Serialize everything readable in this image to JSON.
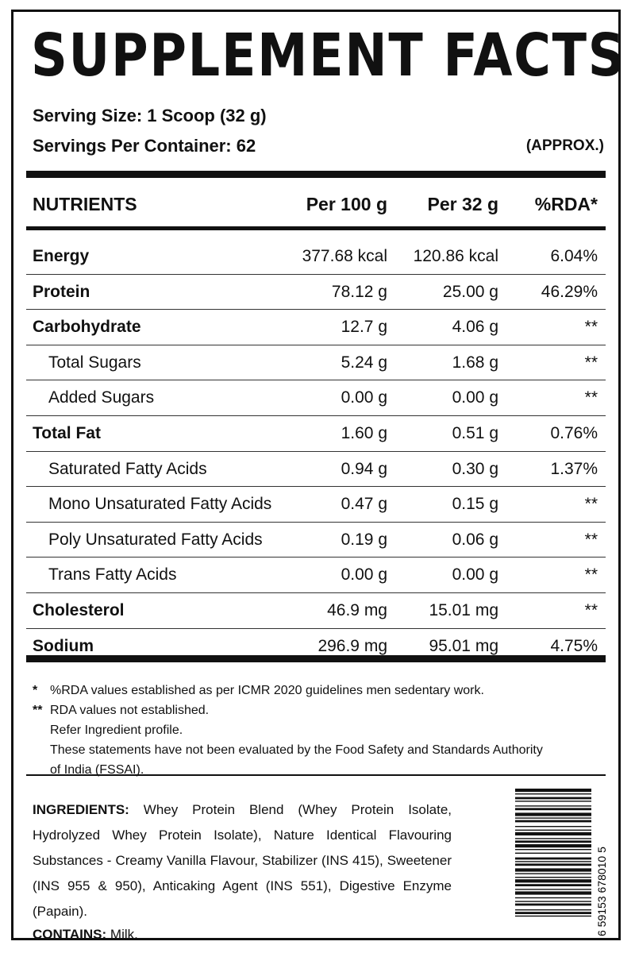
{
  "title": "SUPPLEMENT FACTS",
  "serving_size": "Serving Size: 1 Scoop (32 g)",
  "servings_per_container": "Servings Per Container: 62",
  "approx": "(APPROX.)",
  "table": {
    "headers": [
      "NUTRIENTS",
      "Per 100 g",
      "Per 32 g",
      "%RDA*"
    ],
    "rows": [
      {
        "name": "Energy",
        "per100": "377.68 kcal",
        "per32": "120.86 kcal",
        "rda": "6.04%"
      },
      {
        "name": "Protein",
        "per100": "78.12 g",
        "per32": "25.00 g",
        "rda": "46.29%"
      },
      {
        "name": "Carbohydrate",
        "per100": "12.7 g",
        "per32": "4.06 g",
        "rda": "**"
      },
      {
        "name": "Total Sugars",
        "per100": "5.24 g",
        "per32": "1.68 g",
        "rda": "**"
      },
      {
        "name": "Added Sugars",
        "per100": "0.00 g",
        "per32": "0.00 g",
        "rda": "**"
      },
      {
        "name": "Total Fat",
        "per100": "1.60 g",
        "per32": "0.51 g",
        "rda": "0.76%"
      },
      {
        "name": "Saturated Fatty Acids",
        "per100": "0.94 g",
        "per32": "0.30 g",
        "rda": "1.37%"
      },
      {
        "name": "Mono Unsaturated Fatty Acids",
        "per100": "0.47 g",
        "per32": "0.15 g",
        "rda": "**"
      },
      {
        "name": "Poly Unsaturated Fatty Acids",
        "per100": "0.19 g",
        "per32": "0.06 g",
        "rda": "**"
      },
      {
        "name": "Trans Fatty Acids",
        "per100": "0.00 g",
        "per32": "0.00 g",
        "rda": "**"
      },
      {
        "name": "Cholesterol",
        "per100": "46.9 mg",
        "per32": "15.01 mg",
        "rda": "**"
      },
      {
        "name": "Sodium",
        "per100": "296.9 mg",
        "per32": "95.01 mg",
        "rda": "4.75%"
      }
    ]
  },
  "notes": {
    "note1_marker": "*",
    "note1": "%RDA values established as per ICMR 2020 guidelines men sedentary work.",
    "note2_marker": "**",
    "note2": "RDA values not established.",
    "note3": "Refer Ingredient profile.",
    "note4": "These statements have not been evaluated by the Food Safety and Standards Authority",
    "note5": "of India (FSSAI)."
  },
  "ingredients": {
    "label": "INGREDIENTS:",
    "text": "Whey Protein Blend (Whey Protein Isolate, Hydrolyzed Whey Protein Isolate), Nature Identical Flavouring Substances - Creamy Vanilla Flavour, Stabilizer (INS 415), Sweetener (INS 955 & 950), Anticaking Agent (INS 551), Digestive Enzyme (Papain)."
  },
  "contains": {
    "label": "CONTAINS:",
    "text": "Milk."
  },
  "barcode": {
    "digits": "6 59153 678010 5",
    "icon": "barcode-icon"
  }
}
